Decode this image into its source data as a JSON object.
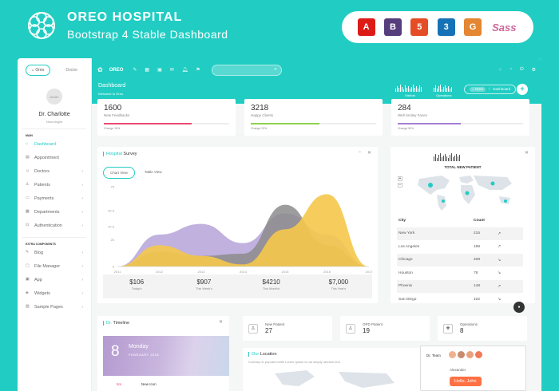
{
  "banner": {
    "title": "OREO HOSPITAL",
    "subtitle": "Bootstrap 4 Stable Dashboard",
    "tech_icons": [
      {
        "name": "angular-icon",
        "glyph": "A",
        "color": "#dd1b16"
      },
      {
        "name": "bootstrap-icon",
        "glyph": "B",
        "color": "#563d7c"
      },
      {
        "name": "html5-icon",
        "glyph": "5",
        "color": "#e44d26"
      },
      {
        "name": "css3-icon",
        "glyph": "3",
        "color": "#1572b6"
      },
      {
        "name": "grunt-icon",
        "glyph": "G",
        "color": "#e48632"
      },
      {
        "name": "sass-icon",
        "glyph": "Sass",
        "color": "#cd6799"
      }
    ]
  },
  "sidebar": {
    "tabs": [
      "Oreo",
      "Doctor"
    ],
    "profile": {
      "avatar_text": "80x80",
      "name": "Dr. Charlotte",
      "role": "Neurologist"
    },
    "main_header": "MAIN",
    "main_items": [
      {
        "label": "Dashboard",
        "icon": "home-icon",
        "glyph": "⌂",
        "chevron": false,
        "active": true
      },
      {
        "label": "Appointment",
        "icon": "calendar-icon",
        "glyph": "▤",
        "chevron": false,
        "active": false
      },
      {
        "label": "Doctors",
        "icon": "doctor-icon",
        "glyph": "☺",
        "chevron": true,
        "active": false
      },
      {
        "label": "Patients",
        "icon": "patient-icon",
        "glyph": "♙",
        "chevron": true,
        "active": false
      },
      {
        "label": "Payments",
        "icon": "payment-icon",
        "glyph": "▭",
        "chevron": true,
        "active": false
      },
      {
        "label": "Departments",
        "icon": "department-icon",
        "glyph": "▦",
        "chevron": true,
        "active": false
      },
      {
        "label": "Authentication",
        "icon": "lock-icon",
        "glyph": "⊡",
        "chevron": true,
        "active": false
      }
    ],
    "extra_header": "EXTRA COMPONENTS",
    "extra_items": [
      {
        "label": "Blog",
        "icon": "blog-icon",
        "glyph": "✎",
        "chevron": true
      },
      {
        "label": "File Manager",
        "icon": "folder-icon",
        "glyph": "▢",
        "chevron": true
      },
      {
        "label": "App",
        "icon": "app-icon",
        "glyph": "▣",
        "chevron": true
      },
      {
        "label": "Widgets",
        "icon": "widgets-icon",
        "glyph": "◈",
        "chevron": true
      },
      {
        "label": "Sample Pages",
        "icon": "pages-icon",
        "glyph": "▧",
        "chevron": true
      }
    ]
  },
  "topbar": {
    "logo": "OREO",
    "search_placeholder": "",
    "search_icon": "⌕"
  },
  "page": {
    "title": "Dashboard",
    "subtitle": "Welcome to Oreo",
    "visitors_label": "Visitors",
    "operations_label": "Operations",
    "breadcrumb_home": "⌂ Oreo",
    "breadcrumb_sep": "/",
    "breadcrumb_current": "Dashboard",
    "add": "+"
  },
  "stats": [
    {
      "value": "1600",
      "label": "New Feedbacks",
      "change": "Change 15%",
      "color": "#e94b70",
      "fill": 0.7
    },
    {
      "value": "3218",
      "label": "Happy Clients",
      "change": "Change 23%",
      "color": "#8fd14f",
      "fill": 0.55
    },
    {
      "value": "284",
      "label": "Well Smiley Faces",
      "change": "Change 50%",
      "color": "#a57ed3",
      "fill": 0.5
    }
  ],
  "survey": {
    "title_prefix": "Hospital",
    "title_rest": "Survey",
    "tabs": [
      "Chart View",
      "Table View"
    ],
    "summary": [
      {
        "value": "$106",
        "label": "Today's"
      },
      {
        "value": "$907",
        "label": "This Week's"
      },
      {
        "value": "$4210",
        "label": "This Month's"
      },
      {
        "value": "$7,000",
        "label": "This Year's"
      }
    ]
  },
  "chart_data": {
    "type": "area",
    "x": [
      "2011",
      "2012",
      "2013",
      "2014",
      "2015",
      "2016",
      "2017"
    ],
    "yticks": [
      "0",
      "25",
      "37.5",
      "52.5",
      "75"
    ],
    "ylim": [
      0,
      75
    ],
    "series": [
      {
        "color": "#b9a9dc",
        "values": [
          0,
          30,
          40,
          22,
          50,
          30,
          0
        ]
      },
      {
        "color": "#8c8c8c",
        "values": [
          0,
          14,
          10,
          12,
          58,
          20,
          0
        ]
      },
      {
        "color": "#f5c84a",
        "values": [
          0,
          20,
          10,
          2,
          35,
          68,
          0
        ]
      }
    ]
  },
  "patients": {
    "title": "TOTAL NEW PATIENT",
    "zoom_in": "+",
    "zoom_out": "−",
    "columns": [
      "City",
      "Count"
    ],
    "rows": [
      {
        "city": "New York",
        "count": "215",
        "trend": "↗"
      },
      {
        "city": "Los Angeles",
        "count": "189",
        "trend": "↗"
      },
      {
        "city": "Chicago",
        "count": "408",
        "trend": "↘"
      },
      {
        "city": "Houston",
        "count": "78",
        "trend": "↘"
      },
      {
        "city": "Phoenix",
        "count": "148",
        "trend": "↗"
      },
      {
        "city": "San Diego",
        "count": "102",
        "trend": "↘"
      }
    ]
  },
  "timeline": {
    "title_prefix": "Dr.",
    "title_rest": "Timeline",
    "day": "8",
    "weekday": "Monday",
    "month": "FEBRUARY 2018",
    "item_time": "5m",
    "item_text": "New Icon"
  },
  "mini_cards": [
    {
      "label": "New Patient",
      "value": "27",
      "icon": "user-icon",
      "glyph": "♙"
    },
    {
      "label": "OPD Patient",
      "value": "19",
      "icon": "user-icon",
      "glyph": "♙"
    },
    {
      "label": "Operations",
      "value": "8",
      "icon": "operation-icon",
      "glyph": "✚"
    }
  ],
  "location": {
    "title_prefix": "Our",
    "title_rest": "Location",
    "subtitle": "Contrary to popular belief Lorem Ipsum is not simply random text"
  },
  "team": {
    "title": "Dr. Team",
    "chat_name": "Alexander",
    "chat_message": "Hello, John"
  }
}
